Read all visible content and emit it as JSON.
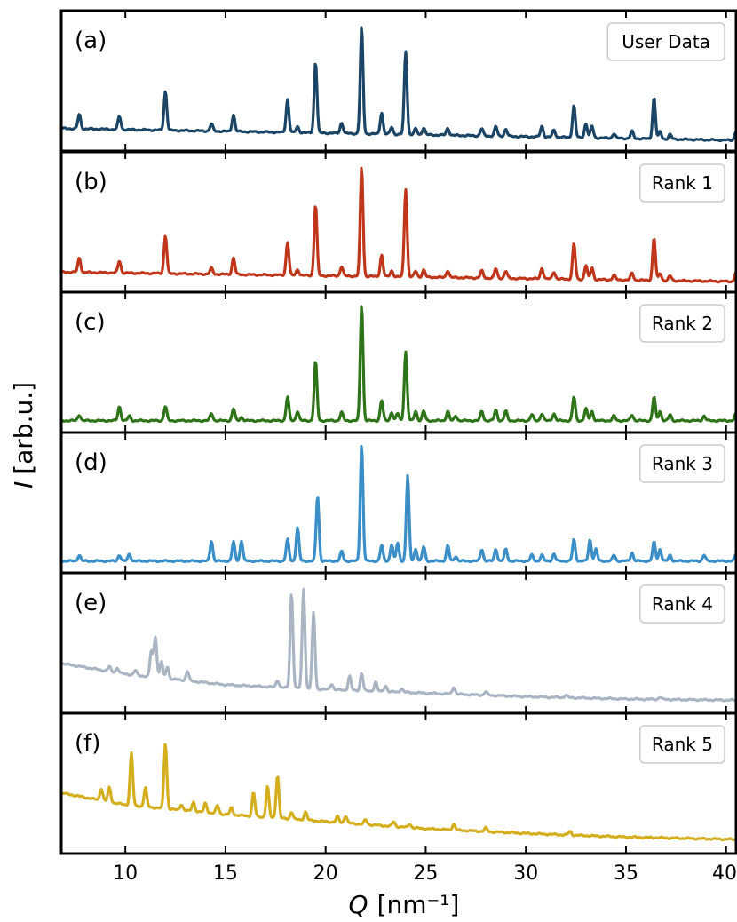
{
  "chart_data": {
    "type": "line",
    "xlabel": "Q [nm⁻¹]",
    "xlabel_main": "Q",
    "xlabel_unit": "[nm⁻¹]",
    "ylabel": "I [arb.u.]",
    "ylabel_main": "I",
    "ylabel_unit": "[arb.u.]",
    "xlim": [
      6.8,
      40.5
    ],
    "xticks": [
      10,
      15,
      20,
      25,
      30,
      35,
      40
    ],
    "xtick_labels": [
      "10",
      "15",
      "20",
      "25",
      "30",
      "35",
      "40"
    ],
    "grid": false,
    "legend_placement": "top-right",
    "panels": [
      {
        "label": "(a)",
        "legend": "User Data",
        "color": "#1a4566",
        "baseline": [
          [
            6.8,
            0.1
          ],
          [
            40.5,
            0.0
          ]
        ],
        "peaks": [
          [
            7.7,
            0.12
          ],
          [
            9.7,
            0.11
          ],
          [
            12.0,
            0.33
          ],
          [
            14.3,
            0.06
          ],
          [
            15.4,
            0.14
          ],
          [
            18.1,
            0.28
          ],
          [
            18.6,
            0.05
          ],
          [
            19.5,
            0.6
          ],
          [
            20.8,
            0.09
          ],
          [
            21.8,
            0.9
          ],
          [
            22.8,
            0.18
          ],
          [
            23.3,
            0.06
          ],
          [
            24.0,
            0.7
          ],
          [
            24.5,
            0.05
          ],
          [
            24.9,
            0.06
          ],
          [
            26.1,
            0.06
          ],
          [
            27.8,
            0.06
          ],
          [
            28.5,
            0.08
          ],
          [
            29.0,
            0.06
          ],
          [
            30.8,
            0.09
          ],
          [
            31.4,
            0.06
          ],
          [
            32.4,
            0.27
          ],
          [
            33.0,
            0.12
          ],
          [
            33.3,
            0.1
          ],
          [
            34.4,
            0.04
          ],
          [
            35.3,
            0.06
          ],
          [
            36.4,
            0.35
          ],
          [
            36.7,
            0.06
          ],
          [
            37.2,
            0.04
          ],
          [
            40.5,
            0.08
          ]
        ]
      },
      {
        "label": "(b)",
        "legend": "Rank 1",
        "color": "#c0361a",
        "baseline": [
          [
            6.8,
            0.08
          ],
          [
            40.5,
            0.0
          ]
        ],
        "peaks": [
          [
            7.7,
            0.12
          ],
          [
            9.7,
            0.1
          ],
          [
            12.0,
            0.32
          ],
          [
            14.3,
            0.05
          ],
          [
            15.4,
            0.14
          ],
          [
            18.1,
            0.28
          ],
          [
            18.6,
            0.05
          ],
          [
            19.5,
            0.6
          ],
          [
            20.8,
            0.08
          ],
          [
            21.8,
            0.92
          ],
          [
            22.8,
            0.18
          ],
          [
            23.3,
            0.05
          ],
          [
            24.0,
            0.74
          ],
          [
            24.5,
            0.05
          ],
          [
            24.9,
            0.06
          ],
          [
            26.1,
            0.06
          ],
          [
            27.8,
            0.06
          ],
          [
            28.5,
            0.08
          ],
          [
            29.0,
            0.06
          ],
          [
            30.8,
            0.09
          ],
          [
            31.4,
            0.06
          ],
          [
            32.4,
            0.3
          ],
          [
            33.0,
            0.12
          ],
          [
            33.3,
            0.1
          ],
          [
            34.4,
            0.04
          ],
          [
            35.3,
            0.06
          ],
          [
            36.4,
            0.36
          ],
          [
            36.7,
            0.06
          ],
          [
            37.2,
            0.04
          ],
          [
            40.5,
            0.08
          ]
        ]
      },
      {
        "label": "(c)",
        "legend": "Rank 2",
        "color": "#2d7418",
        "baseline": [
          [
            6.8,
            0.01
          ],
          [
            40.5,
            0.01
          ]
        ],
        "peaks": [
          [
            7.7,
            0.05
          ],
          [
            9.7,
            0.12
          ],
          [
            10.2,
            0.04
          ],
          [
            12.0,
            0.12
          ],
          [
            14.3,
            0.06
          ],
          [
            15.4,
            0.1
          ],
          [
            15.8,
            0.03
          ],
          [
            18.1,
            0.2
          ],
          [
            18.6,
            0.08
          ],
          [
            19.5,
            0.5
          ],
          [
            20.8,
            0.07
          ],
          [
            21.8,
            0.98
          ],
          [
            22.8,
            0.17
          ],
          [
            23.3,
            0.07
          ],
          [
            23.6,
            0.06
          ],
          [
            24.0,
            0.58
          ],
          [
            24.5,
            0.08
          ],
          [
            24.9,
            0.08
          ],
          [
            26.1,
            0.08
          ],
          [
            26.5,
            0.04
          ],
          [
            27.8,
            0.08
          ],
          [
            28.5,
            0.09
          ],
          [
            29.0,
            0.08
          ],
          [
            30.3,
            0.05
          ],
          [
            30.8,
            0.06
          ],
          [
            31.4,
            0.06
          ],
          [
            32.4,
            0.2
          ],
          [
            33.0,
            0.1
          ],
          [
            33.3,
            0.08
          ],
          [
            34.4,
            0.04
          ],
          [
            35.3,
            0.05
          ],
          [
            36.4,
            0.2
          ],
          [
            36.7,
            0.08
          ],
          [
            37.2,
            0.05
          ],
          [
            38.9,
            0.04
          ],
          [
            40.5,
            0.06
          ]
        ]
      },
      {
        "label": "(d)",
        "legend": "Rank 3",
        "color": "#3a8fc8",
        "baseline": [
          [
            6.8,
            0.01
          ],
          [
            40.5,
            0.01
          ]
        ],
        "peaks": [
          [
            7.7,
            0.05
          ],
          [
            9.7,
            0.05
          ],
          [
            10.2,
            0.06
          ],
          [
            14.3,
            0.17
          ],
          [
            15.4,
            0.16
          ],
          [
            15.8,
            0.17
          ],
          [
            18.1,
            0.18
          ],
          [
            18.6,
            0.28
          ],
          [
            19.6,
            0.55
          ],
          [
            20.8,
            0.08
          ],
          [
            21.8,
            0.98
          ],
          [
            22.8,
            0.13
          ],
          [
            23.3,
            0.14
          ],
          [
            23.6,
            0.15
          ],
          [
            24.1,
            0.72
          ],
          [
            24.5,
            0.1
          ],
          [
            24.9,
            0.12
          ],
          [
            26.1,
            0.13
          ],
          [
            26.5,
            0.04
          ],
          [
            27.8,
            0.1
          ],
          [
            28.5,
            0.1
          ],
          [
            29.0,
            0.1
          ],
          [
            30.3,
            0.05
          ],
          [
            30.8,
            0.05
          ],
          [
            31.4,
            0.06
          ],
          [
            32.4,
            0.18
          ],
          [
            33.2,
            0.18
          ],
          [
            33.5,
            0.1
          ],
          [
            34.4,
            0.05
          ],
          [
            35.3,
            0.07
          ],
          [
            36.4,
            0.16
          ],
          [
            36.7,
            0.1
          ],
          [
            37.2,
            0.05
          ],
          [
            38.9,
            0.05
          ],
          [
            40.5,
            0.06
          ]
        ]
      },
      {
        "label": "(e)",
        "legend": "Rank 4",
        "color": "#a9b5c2",
        "baseline": [
          [
            6.8,
            0.33
          ],
          [
            10.0,
            0.24
          ],
          [
            15.0,
            0.15
          ],
          [
            20.0,
            0.11
          ],
          [
            25.0,
            0.08
          ],
          [
            30.0,
            0.05
          ],
          [
            35.0,
            0.03
          ],
          [
            40.5,
            0.02
          ]
        ],
        "peaks": [
          [
            9.2,
            0.04
          ],
          [
            9.6,
            0.04
          ],
          [
            10.5,
            0.04
          ],
          [
            11.3,
            0.22
          ],
          [
            11.5,
            0.34
          ],
          [
            11.8,
            0.14
          ],
          [
            12.1,
            0.1
          ],
          [
            13.1,
            0.08
          ],
          [
            17.6,
            0.06
          ],
          [
            18.3,
            0.8
          ],
          [
            18.9,
            0.84
          ],
          [
            19.4,
            0.64
          ],
          [
            20.3,
            0.05
          ],
          [
            21.2,
            0.12
          ],
          [
            21.8,
            0.15
          ],
          [
            22.5,
            0.08
          ],
          [
            23.0,
            0.05
          ],
          [
            23.8,
            0.03
          ],
          [
            26.4,
            0.06
          ],
          [
            28.0,
            0.03
          ],
          [
            32.0,
            0.02
          ],
          [
            36.7,
            0.02
          ]
        ]
      },
      {
        "label": "(f)",
        "legend": "Rank 5",
        "color": "#d4ae1d",
        "baseline": [
          [
            6.8,
            0.42
          ],
          [
            10.0,
            0.32
          ],
          [
            15.0,
            0.24
          ],
          [
            20.0,
            0.18
          ],
          [
            25.0,
            0.12
          ],
          [
            30.0,
            0.08
          ],
          [
            35.0,
            0.05
          ],
          [
            40.5,
            0.03
          ]
        ],
        "peaks": [
          [
            8.8,
            0.1
          ],
          [
            9.2,
            0.12
          ],
          [
            10.3,
            0.44
          ],
          [
            11.0,
            0.16
          ],
          [
            12.0,
            0.55
          ],
          [
            12.8,
            0.05
          ],
          [
            13.4,
            0.08
          ],
          [
            14.0,
            0.08
          ],
          [
            14.6,
            0.07
          ],
          [
            15.3,
            0.06
          ],
          [
            16.4,
            0.2
          ],
          [
            17.1,
            0.26
          ],
          [
            17.6,
            0.36
          ],
          [
            18.3,
            0.06
          ],
          [
            19.0,
            0.07
          ],
          [
            20.6,
            0.05
          ],
          [
            21.0,
            0.06
          ],
          [
            22.0,
            0.04
          ],
          [
            23.4,
            0.04
          ],
          [
            24.2,
            0.03
          ],
          [
            26.4,
            0.05
          ],
          [
            28.0,
            0.03
          ],
          [
            32.2,
            0.03
          ]
        ]
      }
    ]
  }
}
